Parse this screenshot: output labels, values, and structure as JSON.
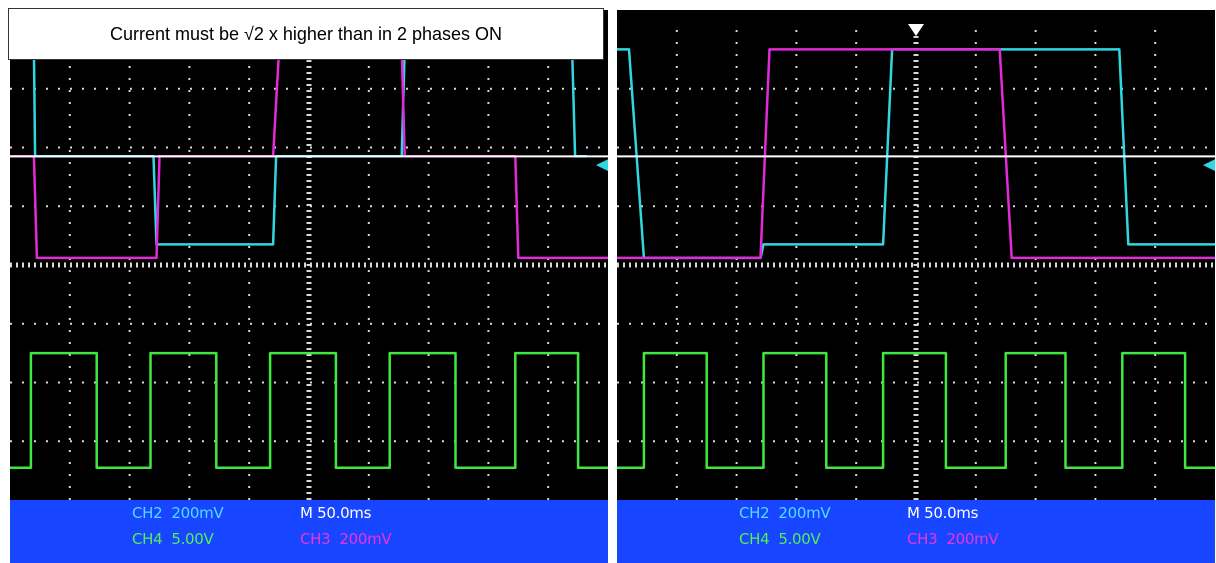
{
  "caption": "Current must be √2 x higher than in 2 phases ON",
  "colors": {
    "screen": "#000000",
    "grid": "#d8d8d8",
    "ch2": "#2fd8e0",
    "ch3": "#e22ad8",
    "ch4": "#3fe83f",
    "reference": "#ffffff",
    "status_bar": "#1845ff"
  },
  "chart_data": [
    {
      "type": "line",
      "title": "",
      "xlabel": "",
      "ylabel": "",
      "grid": true,
      "time_divisions": 10,
      "vertical_divisions": 8,
      "x_units": "divisions",
      "y_units": "divisions from top",
      "xlim": [
        0,
        10
      ],
      "ylim": [
        8,
        0
      ],
      "status": {
        "ch2": "CH2  200mV",
        "ch4": "CH4  5.00V",
        "ch3": "CH3  200mV",
        "timebase": "M 50.0ms"
      },
      "reference_line": {
        "y": 2.15
      },
      "series": [
        {
          "name": "CH2",
          "color_key": "ch2",
          "points": [
            [
              0,
              0.33
            ],
            [
              0.4,
              0.33
            ],
            [
              0.42,
              2.15
            ],
            [
              2.4,
              2.15
            ],
            [
              2.45,
              3.65
            ],
            [
              4.4,
              3.65
            ],
            [
              4.45,
              2.15
            ],
            [
              6.55,
              2.15
            ],
            [
              6.6,
              0.33
            ],
            [
              9.4,
              0.33
            ],
            [
              9.45,
              2.15
            ],
            [
              9.65,
              2.15
            ]
          ]
        },
        {
          "name": "CH3",
          "color_key": "ch3",
          "points": [
            [
              0,
              2.15
            ],
            [
              0.4,
              2.15
            ],
            [
              0.45,
              3.88
            ],
            [
              2.45,
              3.88
            ],
            [
              2.5,
              2.15
            ],
            [
              4.4,
              2.15
            ],
            [
              4.5,
              0.33
            ],
            [
              6.55,
              0.33
            ],
            [
              6.6,
              2.15
            ],
            [
              8.45,
              2.15
            ],
            [
              8.5,
              3.88
            ],
            [
              10,
              3.88
            ]
          ]
        },
        {
          "name": "CH4",
          "color_key": "ch4",
          "points": [
            [
              0,
              7.45
            ],
            [
              0.35,
              7.45
            ],
            [
              0.35,
              5.5
            ],
            [
              1.45,
              5.5
            ],
            [
              1.45,
              7.45
            ],
            [
              2.35,
              7.45
            ],
            [
              2.35,
              5.5
            ],
            [
              3.45,
              5.5
            ],
            [
              3.45,
              7.45
            ],
            [
              4.35,
              7.45
            ],
            [
              4.35,
              5.5
            ],
            [
              5.45,
              5.5
            ],
            [
              5.45,
              7.45
            ],
            [
              6.35,
              7.45
            ],
            [
              6.35,
              5.5
            ],
            [
              7.45,
              5.5
            ],
            [
              7.45,
              7.45
            ],
            [
              8.45,
              7.45
            ],
            [
              8.45,
              5.5
            ],
            [
              9.5,
              5.5
            ],
            [
              9.5,
              7.45
            ],
            [
              10,
              7.45
            ]
          ]
        }
      ]
    },
    {
      "type": "line",
      "title": "",
      "xlabel": "",
      "ylabel": "",
      "grid": true,
      "time_divisions": 10,
      "vertical_divisions": 8,
      "x_units": "divisions",
      "y_units": "divisions from top",
      "xlim": [
        0,
        10
      ],
      "ylim": [
        8,
        0
      ],
      "status": {
        "ch2": "CH2  200mV",
        "ch4": "CH4  5.00V",
        "ch3": "CH3  200mV",
        "timebase": "M 50.0ms"
      },
      "reference_line": {
        "y": 2.15
      },
      "series": [
        {
          "name": "CH2",
          "color_key": "ch2",
          "points": [
            [
              0,
              0.33
            ],
            [
              0.2,
              0.33
            ],
            [
              0.45,
              3.88
            ],
            [
              2.4,
              3.88
            ],
            [
              2.45,
              3.65
            ],
            [
              4.45,
              3.65
            ],
            [
              4.6,
              0.33
            ],
            [
              8.4,
              0.33
            ],
            [
              8.55,
              3.65
            ],
            [
              10,
              3.65
            ]
          ]
        },
        {
          "name": "CH3",
          "color_key": "ch3",
          "points": [
            [
              0,
              3.88
            ],
            [
              2.4,
              3.88
            ],
            [
              2.55,
              0.33
            ],
            [
              6.4,
              0.33
            ],
            [
              6.6,
              3.88
            ],
            [
              10,
              3.88
            ]
          ]
        },
        {
          "name": "CH4",
          "color_key": "ch4",
          "points": [
            [
              0,
              7.45
            ],
            [
              0.45,
              7.45
            ],
            [
              0.45,
              5.5
            ],
            [
              1.5,
              5.5
            ],
            [
              1.5,
              7.45
            ],
            [
              2.45,
              7.45
            ],
            [
              2.45,
              5.5
            ],
            [
              3.5,
              5.5
            ],
            [
              3.5,
              7.45
            ],
            [
              4.45,
              7.45
            ],
            [
              4.45,
              5.5
            ],
            [
              5.5,
              5.5
            ],
            [
              5.5,
              7.45
            ],
            [
              6.5,
              7.45
            ],
            [
              6.5,
              5.5
            ],
            [
              7.5,
              5.5
            ],
            [
              7.5,
              7.45
            ],
            [
              8.45,
              7.45
            ],
            [
              8.45,
              5.5
            ],
            [
              9.5,
              5.5
            ],
            [
              9.5,
              7.45
            ],
            [
              10,
              7.45
            ]
          ]
        }
      ]
    }
  ]
}
